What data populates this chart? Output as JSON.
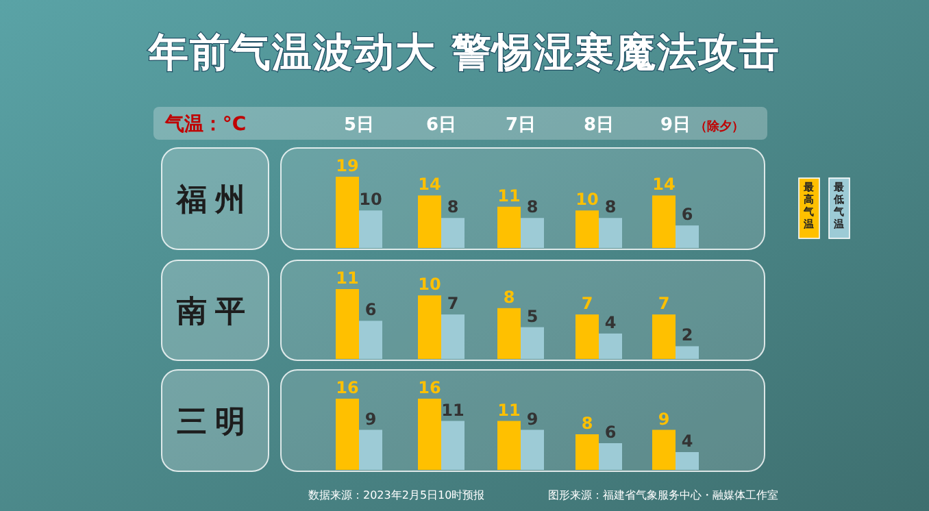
{
  "chart_data": [
    {
      "type": "bar",
      "title": "年前气温波动大  警惕湿寒魔法攻击",
      "ylabel": "福州",
      "y2label": "气温：°C",
      "categories": [
        "5日",
        "6日",
        "7日",
        "8日",
        "9日"
      ],
      "legend": "right",
      "data_labels": true,
      "annotations": [
        "（除夕）"
      ],
      "series": [
        {
          "name": "最高气温",
          "color": "#ffc000",
          "values": [
            19,
            14,
            11,
            10,
            14
          ]
        },
        {
          "name": "最低气温",
          "color": "#9dcbd6",
          "values": [
            10,
            8,
            8,
            8,
            6
          ]
        }
      ]
    },
    {
      "type": "bar",
      "ylabel": "南平",
      "categories": [
        null,
        null,
        null,
        null,
        null
      ],
      "data_labels": true,
      "series": [
        {
          "color": "#ffc000",
          "values": [
            11,
            10,
            8,
            7,
            7
          ]
        },
        {
          "color": "#9dcbd6",
          "values": [
            6,
            7,
            5,
            4,
            2
          ]
        }
      ]
    },
    {
      "type": "bar",
      "ylabel": "三明",
      "categories": [
        null,
        null,
        null,
        null,
        null
      ],
      "data_labels": true,
      "annotations": [
        "数据来源：2023年2月5日10时预报",
        "图形来源：福建省气象服务中心・融媒体工作室"
      ],
      "series": [
        {
          "color": "#ffc000",
          "values": [
            16,
            16,
            11,
            8,
            9
          ]
        },
        {
          "color": "#9dcbd6",
          "values": [
            9,
            11,
            9,
            6,
            4
          ]
        }
      ]
    }
  ]
}
